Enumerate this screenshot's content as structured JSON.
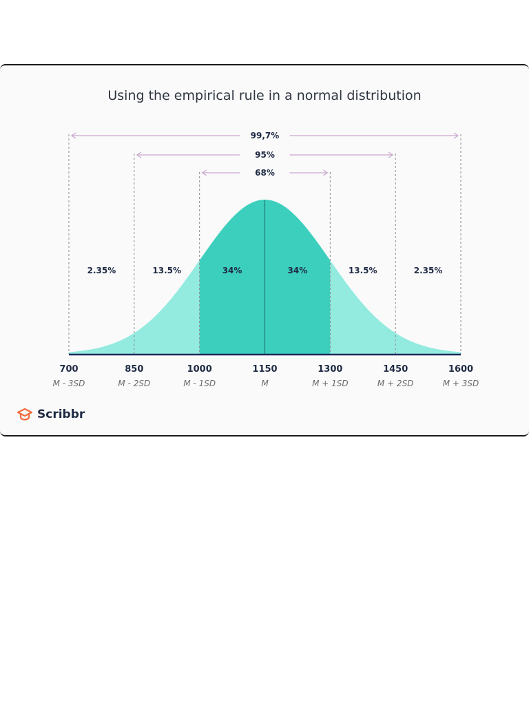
{
  "chart_data": {
    "type": "area",
    "title": "Using the empirical rule in a normal distribution",
    "distribution": {
      "mean": 1150,
      "sd": 150
    },
    "xlim": [
      700,
      1600
    ],
    "ticks": [
      {
        "value": 700,
        "label": "700",
        "sublabel": "M - 3SD"
      },
      {
        "value": 850,
        "label": "850",
        "sublabel": "M - 2SD"
      },
      {
        "value": 1000,
        "label": "1000",
        "sublabel": "M - 1SD"
      },
      {
        "value": 1150,
        "label": "1150",
        "sublabel": "M"
      },
      {
        "value": 1300,
        "label": "1300",
        "sublabel": "M + 1SD"
      },
      {
        "value": 1450,
        "label": "1450",
        "sublabel": "M + 2SD"
      },
      {
        "value": 1600,
        "label": "1600",
        "sublabel": "M + 3SD"
      }
    ],
    "regions": [
      {
        "from": 700,
        "to": 850,
        "label": "2.35%",
        "shade": "light"
      },
      {
        "from": 850,
        "to": 1000,
        "label": "13.5%",
        "shade": "light"
      },
      {
        "from": 1000,
        "to": 1150,
        "label": "34%",
        "shade": "dark"
      },
      {
        "from": 1150,
        "to": 1300,
        "label": "34%",
        "shade": "dark"
      },
      {
        "from": 1300,
        "to": 1450,
        "label": "13.5%",
        "shade": "light"
      },
      {
        "from": 1450,
        "to": 1600,
        "label": "2.35%",
        "shade": "light"
      }
    ],
    "ranges": [
      {
        "from": 700,
        "to": 1600,
        "label": "99,7%"
      },
      {
        "from": 850,
        "to": 1450,
        "label": "95%"
      },
      {
        "from": 1000,
        "to": 1300,
        "label": "68%"
      }
    ],
    "colors": {
      "dark": "#3ccfbd",
      "light": "#93ebe0",
      "axis": "#1f2a5a",
      "range": "#c9a6cf",
      "guide": "#8a8a8a",
      "text": "#1f2a44",
      "subtext": "#6b6b6b"
    }
  },
  "brand": {
    "name": "Scribbr",
    "color": "#f26b3a",
    "icon": "graduation-cap-icon"
  }
}
